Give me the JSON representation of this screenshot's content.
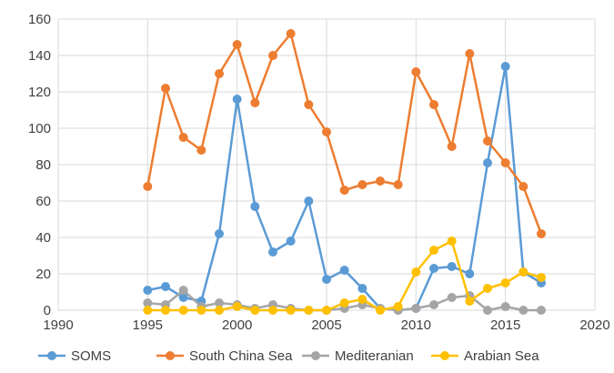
{
  "chart_data": {
    "type": "line",
    "title": "",
    "xlabel": "",
    "ylabel": "",
    "xlim": [
      1990,
      2020
    ],
    "ylim": [
      0,
      160
    ],
    "x_ticks": [
      1990,
      1995,
      2000,
      2005,
      2010,
      2015,
      2020
    ],
    "y_ticks": [
      0,
      20,
      40,
      60,
      80,
      100,
      120,
      140,
      160
    ],
    "grid": "both",
    "legend_position": "bottom",
    "series": [
      {
        "name": "SOMS",
        "color": "#5B9BD5",
        "x": [
          1995,
          1996,
          1997,
          1998,
          1999,
          2000,
          2001,
          2002,
          2003,
          2004,
          2005,
          2006,
          2007,
          2008,
          2009,
          2010,
          2011,
          2012,
          2013,
          2014,
          2015,
          2016,
          2017
        ],
        "values": [
          11,
          13,
          7,
          5,
          42,
          116,
          57,
          32,
          38,
          60,
          17,
          22,
          12,
          1,
          0,
          1,
          23,
          24,
          20,
          81,
          134,
          21,
          15
        ]
      },
      {
        "name": "South China Sea",
        "color": "#ED7D31",
        "x": [
          1995,
          1996,
          1997,
          1998,
          1999,
          2000,
          2001,
          2002,
          2003,
          2004,
          2005,
          2006,
          2007,
          2008,
          2009,
          2010,
          2011,
          2012,
          2013,
          2014,
          2015,
          2016,
          2017
        ],
        "values": [
          68,
          122,
          95,
          88,
          130,
          146,
          114,
          140,
          152,
          113,
          98,
          66,
          69,
          71,
          69,
          131,
          113,
          90,
          141,
          93,
          81,
          68,
          42
        ]
      },
      {
        "name": "Mediteranian",
        "color": "#A5A5A5",
        "x": [
          1995,
          1996,
          1997,
          1998,
          1999,
          2000,
          2001,
          2002,
          2003,
          2004,
          2005,
          2006,
          2007,
          2008,
          2009,
          2010,
          2011,
          2012,
          2013,
          2014,
          2015,
          2016,
          2017
        ],
        "values": [
          4,
          3,
          11,
          2,
          4,
          3,
          1,
          3,
          1,
          0,
          0,
          1,
          3,
          1,
          0,
          1,
          3,
          7,
          8,
          0,
          2,
          0,
          0
        ]
      },
      {
        "name": "Arabian Sea",
        "color": "#FFC000",
        "x": [
          1995,
          1996,
          1997,
          1998,
          1999,
          2000,
          2001,
          2002,
          2003,
          2004,
          2005,
          2006,
          2007,
          2008,
          2009,
          2010,
          2011,
          2012,
          2013,
          2014,
          2015,
          2016,
          2017
        ],
        "values": [
          0,
          0,
          0,
          0,
          0,
          2,
          0,
          0,
          0,
          0,
          0,
          4,
          6,
          0,
          2,
          21,
          33,
          38,
          5,
          12,
          15,
          21,
          18
        ]
      }
    ]
  }
}
